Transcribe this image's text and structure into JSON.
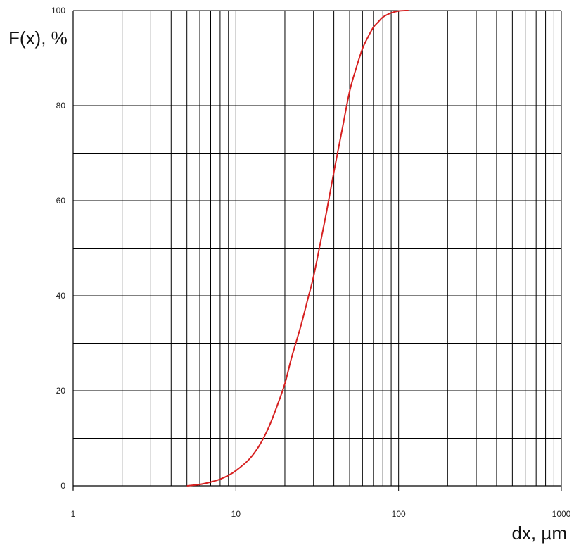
{
  "chart_data": {
    "type": "line",
    "title": "",
    "xlabel": "dx, µm",
    "ylabel": "F(x), %",
    "xscale": "log",
    "xlim": [
      1,
      1000
    ],
    "ylim": [
      0,
      100
    ],
    "x_ticks": [
      {
        "value": 1,
        "label": "1"
      },
      {
        "value": 10,
        "label": "10"
      },
      {
        "value": 100,
        "label": "100"
      },
      {
        "value": 1000,
        "label": "1000"
      }
    ],
    "y_ticks": [
      {
        "value": 0,
        "label": "0"
      },
      {
        "value": 20,
        "label": "20"
      },
      {
        "value": 40,
        "label": "40"
      },
      {
        "value": 60,
        "label": "60"
      },
      {
        "value": 80,
        "label": "80"
      },
      {
        "value": 100,
        "label": "100"
      }
    ],
    "grid": true,
    "line_color": "#d62020",
    "series": [
      {
        "x": [
          5,
          6,
          7,
          8,
          9,
          10,
          12,
          14,
          16,
          18,
          20,
          22,
          25,
          28,
          30,
          33,
          36,
          40,
          45,
          50,
          55,
          60,
          65,
          70,
          75,
          80,
          90,
          100,
          110,
          115
        ],
        "values": [
          0,
          0.3,
          0.8,
          1.4,
          2.2,
          3.2,
          5.5,
          8.6,
          12.5,
          17.0,
          21.5,
          27.0,
          33.5,
          40.0,
          44.0,
          51.0,
          57.5,
          66.0,
          75.0,
          83.0,
          88.0,
          92.0,
          94.5,
          96.5,
          97.6,
          98.6,
          99.5,
          99.9,
          100,
          100
        ]
      }
    ]
  }
}
